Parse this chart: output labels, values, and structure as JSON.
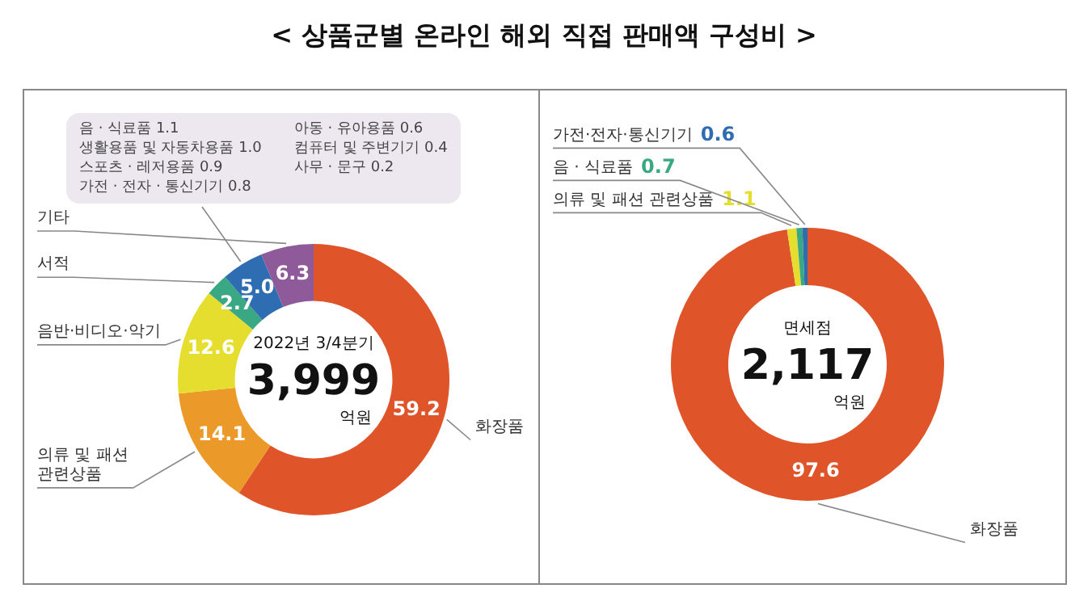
{
  "chart_data": [
    {
      "type": "donut",
      "title": "< 상품군별 온라인 해외 직접 판매액 구성비 >",
      "categories": [
        "화장품",
        "의류 및 패션 관련상품",
        "음반·비디오·악기",
        "서적",
        null,
        "기타"
      ],
      "values": [
        59.2,
        14.1,
        12.6,
        2.7,
        5.0,
        6.3
      ],
      "colors": [
        "#e0542a",
        "#eb9a2a",
        "#e6de2e",
        "#3aa883",
        "#2f6db3",
        "#8e5a9a"
      ],
      "value_labels": [
        "59.2",
        "14.1",
        "12.6",
        "2.7",
        "5.0",
        "6.3"
      ],
      "legend": false,
      "annotations": [
        "2022년 3/4분기",
        "3,999",
        "억원",
        "음 · 식료품 1.1",
        "생활용품 및 자동차용품 1.0",
        "스포츠 · 레저용품 0.9",
        "가전 · 전자 · 통신기기 0.8",
        "아동 · 유아용품 0.6",
        "컴퓨터 및 주변기기 0.4",
        "사무 · 문구 0.2"
      ]
    },
    {
      "type": "donut",
      "categories": [
        "화장품",
        "의류 및 패션 관련상품",
        "음 · 식료품",
        "가전·전자·통신기기"
      ],
      "values": [
        97.6,
        1.1,
        0.7,
        0.6
      ],
      "colors": [
        "#e0542a",
        "#e6de2e",
        "#3aa883",
        "#2f6db3"
      ],
      "value_labels": [
        "97.6",
        "1.1",
        "0.7",
        "0.6"
      ],
      "legend": false,
      "annotations": [
        "면세점",
        "2,117",
        "억원"
      ]
    }
  ]
}
